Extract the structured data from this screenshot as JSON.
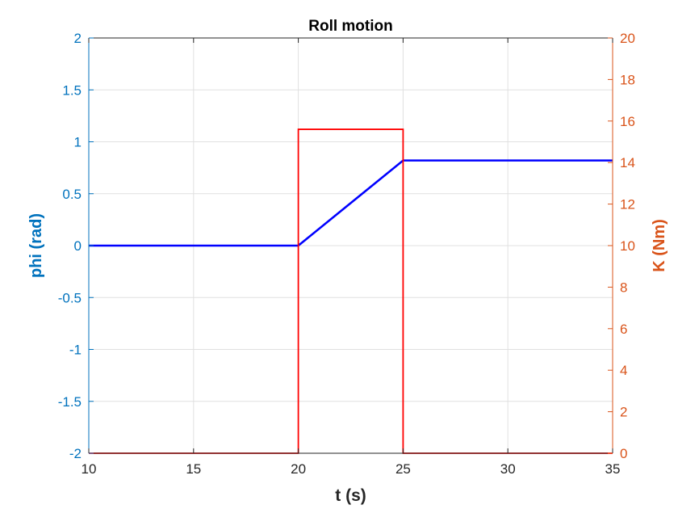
{
  "chart_data": {
    "type": "line",
    "title": "Roll motion",
    "xlabel": "t (s)",
    "ylabel_left": "phi (rad)",
    "ylabel_right": "K (Nm)",
    "xlim": [
      10,
      35
    ],
    "ylim_left": [
      -2,
      2
    ],
    "ylim_right": [
      0,
      20
    ],
    "x_ticks": [
      "10",
      "15",
      "20",
      "25",
      "30",
      "35"
    ],
    "y_ticks_left": [
      "2",
      "1.5",
      "1",
      "0.5",
      "0",
      "-0.5",
      "-1",
      "-1.5",
      "-2"
    ],
    "y_ticks_right": [
      "20",
      "18",
      "16",
      "14",
      "12",
      "10",
      "8",
      "6",
      "4",
      "2",
      "0"
    ],
    "grid": true,
    "colors": {
      "left_axis": "#0072BD",
      "right_axis": "#D95319",
      "phi": "#0000FF",
      "K": "#FF0000",
      "grid": "#E0E0E0"
    },
    "series": [
      {
        "axis": "left",
        "x": [
          10,
          20,
          25,
          35
        ],
        "y": [
          0,
          0,
          0.82,
          0.82
        ]
      },
      {
        "axis": "right",
        "x": [
          10,
          20,
          20,
          25,
          25,
          35
        ],
        "y": [
          0,
          0,
          15.6,
          15.6,
          0,
          0
        ]
      }
    ]
  }
}
